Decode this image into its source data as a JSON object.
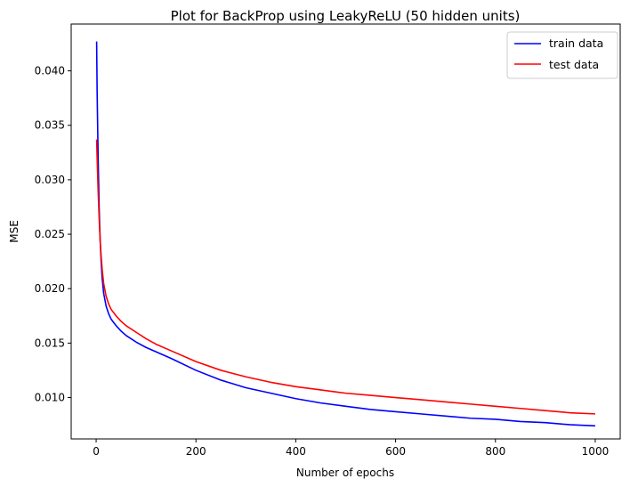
{
  "chart_data": {
    "type": "line",
    "title": "Plot for BackProp using LeakyReLU (50 hidden units)",
    "xlabel": "Number of epochs",
    "ylabel": "MSE",
    "xlim": [
      -50,
      1050
    ],
    "ylim": [
      0.0062,
      0.0443
    ],
    "xticks": [
      0,
      200,
      400,
      600,
      800,
      1000
    ],
    "yticks": [
      0.01,
      0.015,
      0.02,
      0.025,
      0.03,
      0.035,
      0.04
    ],
    "grid": false,
    "legend_position": "top-right",
    "series": [
      {
        "name": "train data",
        "color": "#0000ff",
        "x": [
          1,
          2,
          4,
          6,
          8,
          10,
          12,
          15,
          20,
          25,
          30,
          40,
          50,
          60,
          80,
          100,
          120,
          150,
          200,
          250,
          300,
          350,
          400,
          450,
          500,
          550,
          600,
          650,
          700,
          750,
          800,
          850,
          900,
          950,
          1000
        ],
        "y": [
          0.0427,
          0.038,
          0.032,
          0.0275,
          0.0245,
          0.0225,
          0.021,
          0.0196,
          0.0184,
          0.0177,
          0.0172,
          0.0166,
          0.0161,
          0.0157,
          0.0151,
          0.0146,
          0.0142,
          0.0136,
          0.0125,
          0.0116,
          0.0109,
          0.0104,
          0.0099,
          0.0095,
          0.0092,
          0.0089,
          0.0087,
          0.0085,
          0.0083,
          0.0081,
          0.008,
          0.0078,
          0.0077,
          0.0075,
          0.0074
        ]
      },
      {
        "name": "test data",
        "color": "#ff0000",
        "x": [
          1,
          2,
          4,
          6,
          8,
          10,
          12,
          15,
          20,
          25,
          30,
          40,
          50,
          60,
          80,
          100,
          120,
          150,
          200,
          250,
          300,
          350,
          400,
          450,
          500,
          550,
          600,
          650,
          700,
          750,
          800,
          850,
          900,
          950,
          1000
        ],
        "y": [
          0.0337,
          0.032,
          0.029,
          0.0265,
          0.0245,
          0.023,
          0.0218,
          0.0205,
          0.0193,
          0.0186,
          0.0181,
          0.0175,
          0.017,
          0.0166,
          0.016,
          0.0154,
          0.0149,
          0.0143,
          0.0133,
          0.0125,
          0.0119,
          0.0114,
          0.011,
          0.0107,
          0.0104,
          0.0102,
          0.01,
          0.0098,
          0.0096,
          0.0094,
          0.0092,
          0.009,
          0.0088,
          0.0086,
          0.0085
        ]
      }
    ]
  }
}
